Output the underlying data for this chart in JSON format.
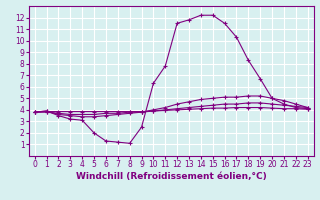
{
  "background_color": "#d8f0f0",
  "grid_color": "#ffffff",
  "line_color": "#800080",
  "marker": "+",
  "xlabel": "Windchill (Refroidissement éolien,°C)",
  "xlabel_fontsize": 6.5,
  "xtick_fontsize": 5.5,
  "ytick_fontsize": 5.5,
  "xlim": [
    -0.5,
    23.5
  ],
  "ylim": [
    0,
    13
  ],
  "xticks": [
    0,
    1,
    2,
    3,
    4,
    5,
    6,
    7,
    8,
    9,
    10,
    11,
    12,
    13,
    14,
    15,
    16,
    17,
    18,
    19,
    20,
    21,
    22,
    23
  ],
  "yticks": [
    1,
    2,
    3,
    4,
    5,
    6,
    7,
    8,
    9,
    10,
    11,
    12
  ],
  "curves": [
    {
      "x": [
        0,
        1,
        2,
        3,
        4,
        5,
        6,
        7,
        8,
        9,
        10,
        11,
        12,
        13,
        14,
        15,
        16,
        17,
        18,
        19,
        20,
        21,
        22,
        23
      ],
      "y": [
        3.8,
        3.9,
        3.5,
        3.2,
        3.1,
        2.0,
        1.3,
        1.2,
        1.1,
        2.5,
        6.3,
        7.8,
        11.5,
        11.8,
        12.2,
        12.2,
        11.5,
        10.3,
        8.3,
        6.7,
        5.0,
        4.5,
        4.2,
        4.1
      ]
    },
    {
      "x": [
        0,
        1,
        2,
        3,
        4,
        5,
        6,
        7,
        8,
        9,
        10,
        11,
        12,
        13,
        14,
        15,
        16,
        17,
        18,
        19,
        20,
        21,
        22,
        23
      ],
      "y": [
        3.8,
        3.9,
        3.6,
        3.5,
        3.4,
        3.4,
        3.5,
        3.6,
        3.7,
        3.8,
        4.0,
        4.2,
        4.5,
        4.7,
        4.9,
        5.0,
        5.1,
        5.1,
        5.2,
        5.2,
        5.0,
        4.8,
        4.5,
        4.2
      ]
    },
    {
      "x": [
        0,
        1,
        2,
        3,
        4,
        5,
        6,
        7,
        8,
        9,
        10,
        11,
        12,
        13,
        14,
        15,
        16,
        17,
        18,
        19,
        20,
        21,
        22,
        23
      ],
      "y": [
        3.8,
        3.8,
        3.7,
        3.6,
        3.6,
        3.6,
        3.7,
        3.7,
        3.8,
        3.8,
        3.9,
        4.0,
        4.1,
        4.2,
        4.3,
        4.4,
        4.5,
        4.5,
        4.6,
        4.6,
        4.5,
        4.4,
        4.3,
        4.2
      ]
    },
    {
      "x": [
        0,
        1,
        2,
        3,
        4,
        5,
        6,
        7,
        8,
        9,
        10,
        11,
        12,
        13,
        14,
        15,
        16,
        17,
        18,
        19,
        20,
        21,
        22,
        23
      ],
      "y": [
        3.8,
        3.85,
        3.85,
        3.85,
        3.85,
        3.85,
        3.85,
        3.85,
        3.85,
        3.85,
        3.9,
        3.95,
        4.0,
        4.05,
        4.1,
        4.15,
        4.15,
        4.2,
        4.2,
        4.2,
        4.15,
        4.1,
        4.1,
        4.05
      ]
    }
  ]
}
